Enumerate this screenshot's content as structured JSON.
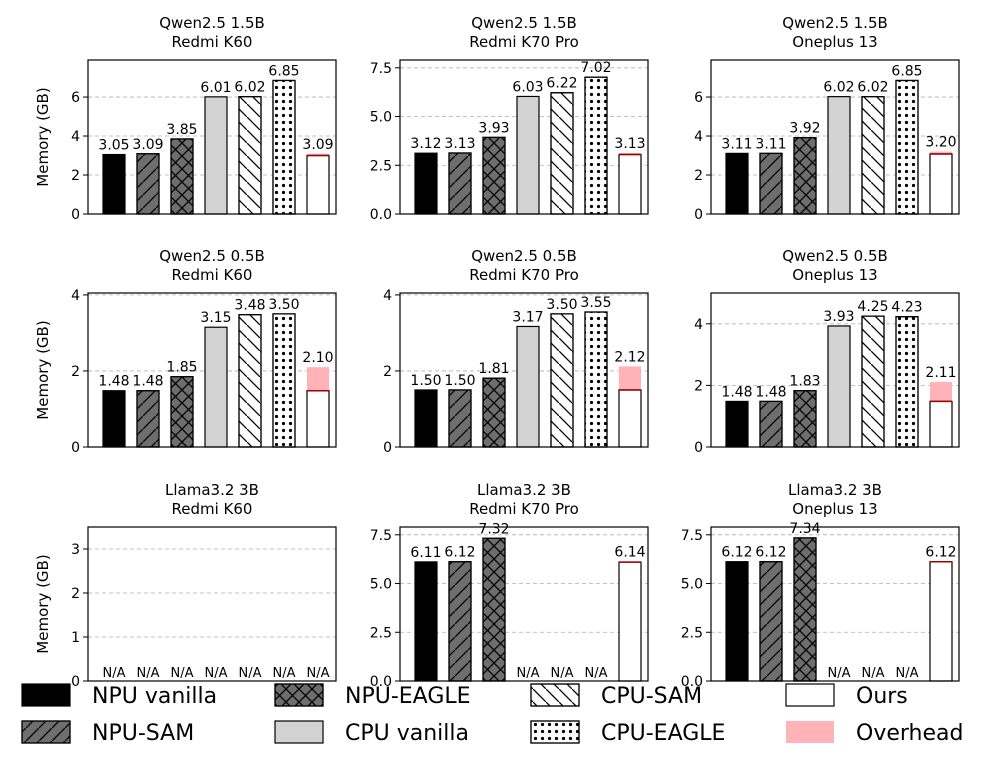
{
  "legend": {
    "items": [
      {
        "key": "npu_vanilla",
        "label": "NPU vanilla"
      },
      {
        "key": "npu_sam",
        "label": "NPU-SAM"
      },
      {
        "key": "npu_eagle",
        "label": "NPU-EAGLE"
      },
      {
        "key": "cpu_vanilla",
        "label": "CPU vanilla"
      },
      {
        "key": "cpu_sam",
        "label": "CPU-SAM"
      },
      {
        "key": "cpu_eagle",
        "label": "CPU-EAGLE"
      },
      {
        "key": "ours",
        "label": "Ours"
      },
      {
        "key": "overhead",
        "label": "Overhead"
      }
    ]
  },
  "colors": {
    "npu_vanilla": "#000000",
    "npu_sam": "#6e6e6e",
    "npu_eagle": "#6e6e6e",
    "cpu_vanilla": "#d3d3d3",
    "cpu_sam": "#ffffff",
    "cpu_eagle": "#ffffff",
    "ours": "#ffffff",
    "overhead": "#ffb3b8",
    "overhead_line": "#a00000",
    "grid": "#b0b0b0"
  },
  "chart_data": [
    {
      "type": "bar",
      "title_line1": "Qwen2.5 1.5B",
      "title_line2": "Redmi K60",
      "ylabel": "Memory (GB)",
      "ylim": [
        0,
        7.9
      ],
      "yticks": [
        0,
        2,
        4,
        6
      ],
      "ytick_labels": [
        "0",
        "2",
        "4",
        "6"
      ],
      "categories": [
        "NPU vanilla",
        "NPU-SAM",
        "NPU-EAGLE",
        "CPU vanilla",
        "CPU-SAM",
        "CPU-EAGLE",
        "Ours"
      ],
      "values": [
        3.05,
        3.09,
        3.85,
        6.01,
        6.02,
        6.85,
        3.09
      ],
      "labels": [
        "3.05",
        "3.09",
        "3.85",
        "6.01",
        "6.02",
        "6.85",
        "3.09"
      ],
      "ours_base": 3.0
    },
    {
      "type": "bar",
      "title_line1": "Qwen2.5 1.5B",
      "title_line2": "Redmi K70 Pro",
      "ylabel": "",
      "ylim": [
        0,
        7.9
      ],
      "yticks": [
        0,
        2.5,
        5,
        7.5
      ],
      "ytick_labels": [
        "0.0",
        "2.5",
        "5.0",
        "7.5"
      ],
      "categories": [
        "NPU vanilla",
        "NPU-SAM",
        "NPU-EAGLE",
        "CPU vanilla",
        "CPU-SAM",
        "CPU-EAGLE",
        "Ours"
      ],
      "values": [
        3.12,
        3.13,
        3.93,
        6.03,
        6.22,
        7.02,
        3.13
      ],
      "labels": [
        "3.12",
        "3.13",
        "3.93",
        "6.03",
        "6.22",
        "7.02",
        "3.13"
      ],
      "ours_base": 3.05
    },
    {
      "type": "bar",
      "title_line1": "Qwen2.5 1.5B",
      "title_line2": "Oneplus 13",
      "ylabel": "",
      "ylim": [
        0,
        7.9
      ],
      "yticks": [
        0,
        2,
        4,
        6
      ],
      "ytick_labels": [
        "0",
        "2",
        "4",
        "6"
      ],
      "categories": [
        "NPU vanilla",
        "NPU-SAM",
        "NPU-EAGLE",
        "CPU vanilla",
        "CPU-SAM",
        "CPU-EAGLE",
        "Ours"
      ],
      "values": [
        3.11,
        3.11,
        3.92,
        6.02,
        6.02,
        6.85,
        3.2
      ],
      "labels": [
        "3.11",
        "3.11",
        "3.92",
        "6.02",
        "6.02",
        "6.85",
        "3.20"
      ],
      "ours_base": 3.08
    },
    {
      "type": "bar",
      "title_line1": "Qwen2.5 0.5B",
      "title_line2": "Redmi K60",
      "ylabel": "Memory (GB)",
      "ylim": [
        0,
        4.05
      ],
      "yticks": [
        0,
        2,
        4
      ],
      "ytick_labels": [
        "0",
        "2",
        "4"
      ],
      "categories": [
        "NPU vanilla",
        "NPU-SAM",
        "NPU-EAGLE",
        "CPU vanilla",
        "CPU-SAM",
        "CPU-EAGLE",
        "Ours"
      ],
      "values": [
        1.48,
        1.48,
        1.85,
        3.15,
        3.48,
        3.5,
        2.1
      ],
      "labels": [
        "1.48",
        "1.48",
        "1.85",
        "3.15",
        "3.48",
        "3.50",
        "2.10"
      ],
      "ours_base": 1.48
    },
    {
      "type": "bar",
      "title_line1": "Qwen2.5 0.5B",
      "title_line2": "Redmi K70 Pro",
      "ylabel": "",
      "ylim": [
        0,
        4.05
      ],
      "yticks": [
        0,
        2,
        4
      ],
      "ytick_labels": [
        "0",
        "2",
        "4"
      ],
      "categories": [
        "NPU vanilla",
        "NPU-SAM",
        "NPU-EAGLE",
        "CPU vanilla",
        "CPU-SAM",
        "CPU-EAGLE",
        "Ours"
      ],
      "values": [
        1.5,
        1.5,
        1.81,
        3.17,
        3.5,
        3.55,
        2.12
      ],
      "labels": [
        "1.50",
        "1.50",
        "1.81",
        "3.17",
        "3.50",
        "3.55",
        "2.12"
      ],
      "ours_base": 1.5
    },
    {
      "type": "bar",
      "title_line1": "Qwen2.5 0.5B",
      "title_line2": "Oneplus 13",
      "ylabel": "",
      "ylim": [
        0,
        5.0
      ],
      "yticks": [
        0,
        2,
        4
      ],
      "ytick_labels": [
        "0",
        "2",
        "4"
      ],
      "categories": [
        "NPU vanilla",
        "NPU-SAM",
        "NPU-EAGLE",
        "CPU vanilla",
        "CPU-SAM",
        "CPU-EAGLE",
        "Ours"
      ],
      "values": [
        1.48,
        1.48,
        1.83,
        3.93,
        4.25,
        4.23,
        2.11
      ],
      "labels": [
        "1.48",
        "1.48",
        "1.83",
        "3.93",
        "4.25",
        "4.23",
        "2.11"
      ],
      "ours_base": 1.48
    },
    {
      "type": "bar",
      "title_line1": "Llama3.2 3B",
      "title_line2": "Redmi K60",
      "ylabel": "Memory (GB)",
      "ylim": [
        0,
        3.5
      ],
      "yticks": [
        0,
        1,
        2,
        3
      ],
      "ytick_labels": [
        "0",
        "1",
        "2",
        "3"
      ],
      "categories": [
        "NPU vanilla",
        "NPU-SAM",
        "NPU-EAGLE",
        "CPU vanilla",
        "CPU-SAM",
        "CPU-EAGLE",
        "Ours"
      ],
      "values": [
        null,
        null,
        null,
        null,
        null,
        null,
        null
      ],
      "labels": [
        "N/A",
        "N/A",
        "N/A",
        "N/A",
        "N/A",
        "N/A",
        "N/A"
      ],
      "ours_base": null
    },
    {
      "type": "bar",
      "title_line1": "Llama3.2 3B",
      "title_line2": "Redmi K70 Pro",
      "ylabel": "",
      "ylim": [
        0,
        7.9
      ],
      "yticks": [
        0,
        2.5,
        5,
        7.5
      ],
      "ytick_labels": [
        "0.0",
        "2.5",
        "5.0",
        "7.5"
      ],
      "categories": [
        "NPU vanilla",
        "NPU-SAM",
        "NPU-EAGLE",
        "CPU vanilla",
        "CPU-SAM",
        "CPU-EAGLE",
        "Ours"
      ],
      "values": [
        6.11,
        6.12,
        7.32,
        null,
        null,
        null,
        6.14
      ],
      "labels": [
        "6.11",
        "6.12",
        "7.32",
        "N/A",
        "N/A",
        "N/A",
        "6.14"
      ],
      "ours_base": 6.1
    },
    {
      "type": "bar",
      "title_line1": "Llama3.2 3B",
      "title_line2": "Oneplus 13",
      "ylabel": "",
      "ylim": [
        0,
        7.9
      ],
      "yticks": [
        0,
        2.5,
        5,
        7.5
      ],
      "ytick_labels": [
        "0.0",
        "2.5",
        "5.0",
        "7.5"
      ],
      "categories": [
        "NPU vanilla",
        "NPU-SAM",
        "NPU-EAGLE",
        "CPU vanilla",
        "CPU-SAM",
        "CPU-EAGLE",
        "Ours"
      ],
      "values": [
        6.12,
        6.12,
        7.34,
        null,
        null,
        null,
        6.12
      ],
      "labels": [
        "6.12",
        "6.12",
        "7.34",
        "N/A",
        "N/A",
        "N/A",
        "6.12"
      ],
      "ours_base": 6.12
    }
  ]
}
